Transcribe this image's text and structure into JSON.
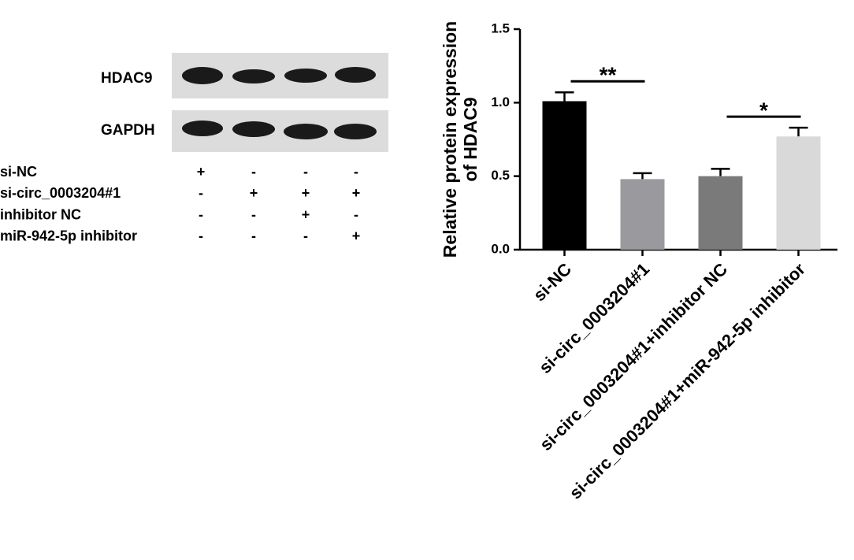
{
  "blot": {
    "bands": [
      "HDAC9",
      "GAPDH"
    ],
    "conditions": [
      {
        "label": "si-NC",
        "signs": [
          "+",
          "-",
          "-",
          "-"
        ]
      },
      {
        "label": "si-circ_0003204#1",
        "signs": [
          "-",
          "+",
          "+",
          "+"
        ]
      },
      {
        "label": "inhibitor NC",
        "signs": [
          "-",
          "-",
          "+",
          "-"
        ]
      },
      {
        "label": "miR-942-5p inhibitor",
        "signs": [
          "-",
          "-",
          "-",
          "+"
        ]
      }
    ]
  },
  "chart_data": {
    "type": "bar",
    "ylabel": [
      "Relative protein expression",
      "of HDAC9"
    ],
    "categories": [
      "si-NC",
      "si-circ_0003204#1",
      "si-circ_0003204#1+inhibitor NC",
      "si-circ_0003204#1+miR-942-5p inhibitor"
    ],
    "values": [
      1.01,
      0.48,
      0.5,
      0.77
    ],
    "errors": [
      0.06,
      0.04,
      0.05,
      0.06
    ],
    "colors": [
      "#000000",
      "#9a9a9e",
      "#7a7a7a",
      "#d9d9d9"
    ],
    "ylim": [
      0,
      1.5
    ],
    "yticks": [
      {
        "value": 0,
        "label": "0.0"
      },
      {
        "value": 0.5,
        "label": "0.5"
      },
      {
        "value": 1,
        "label": "1.0"
      },
      {
        "value": 1.5,
        "label": "1.5"
      }
    ],
    "annotations": [
      {
        "text": "**",
        "between": [
          0,
          1
        ]
      },
      {
        "text": "*",
        "between": [
          2,
          3
        ]
      }
    ]
  }
}
